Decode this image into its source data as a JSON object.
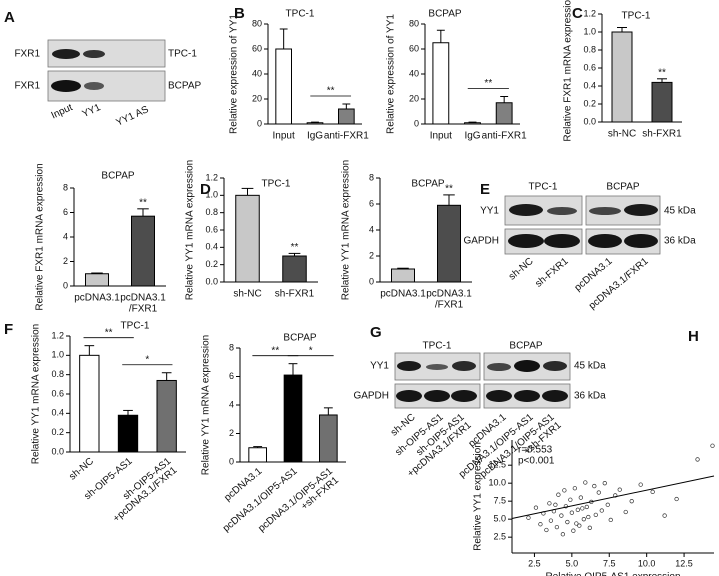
{
  "panels": [
    "A",
    "B",
    "C",
    "D",
    "E",
    "F",
    "G",
    "H"
  ],
  "blot_A": {
    "rows": [
      "FXR1",
      "FXR1"
    ],
    "cells": [
      "TPC-1",
      "BCPAP"
    ],
    "lanes": [
      "Input",
      "YY1",
      "YY1 AS"
    ]
  },
  "blot_E": {
    "cells": [
      "TPC-1",
      "BCPAP"
    ],
    "rows": [
      "YY1",
      "GAPDH"
    ],
    "sizes": [
      "45 kDa",
      "36 kDa"
    ],
    "lanes": [
      "sh-NC",
      "sh-FXR1",
      "pcDNA3.1",
      "pcDNA3.1/FXR1"
    ]
  },
  "blot_G": {
    "cells": [
      "TPC-1",
      "BCPAP"
    ],
    "rows": [
      "YY1",
      "GAPDH"
    ],
    "sizes": [
      "45 kDa",
      "36 kDa"
    ],
    "lanes": [
      "sh-NC",
      "sh-OIP5-AS1",
      [
        "sh-OIP5-AS1",
        "+pcDNA3.1/FXR1"
      ],
      "pcDNA3.1",
      "pcDNA3.1/OIP5-AS1",
      [
        "pcDNA3.1/OIP5-AS1",
        "+sh-FXR1"
      ]
    ]
  },
  "chart_data": [
    {
      "type": "bar",
      "title": "TPC-1",
      "ylabel": "Relative expression of YY1",
      "categories": [
        "Input",
        "IgG",
        "anti-FXR1"
      ],
      "values": [
        60,
        1,
        12
      ],
      "errors": [
        16,
        0.5,
        4
      ],
      "colors": [
        "#ffffff",
        "#ffffff",
        "#808080"
      ],
      "ylim": [
        0,
        80
      ],
      "yticks": [
        0,
        20,
        40,
        60,
        80
      ],
      "brackets": [
        {
          "between": [
            1,
            2
          ],
          "label": "**"
        }
      ]
    },
    {
      "type": "bar",
      "title": "BCPAP",
      "ylabel": "Relative expression of YY1",
      "categories": [
        "Input",
        "IgG",
        "anti-FXR1"
      ],
      "values": [
        65,
        1,
        17
      ],
      "errors": [
        10,
        0.5,
        5
      ],
      "colors": [
        "#ffffff",
        "#ffffff",
        "#808080"
      ],
      "ylim": [
        0,
        80
      ],
      "yticks": [
        0,
        20,
        40,
        60,
        80
      ],
      "brackets": [
        {
          "between": [
            1,
            2
          ],
          "label": "**"
        }
      ]
    },
    {
      "type": "bar",
      "title": "TPC-1",
      "ylabel": "Relative FXR1 mRNA expression",
      "categories": [
        "sh-NC",
        "sh-FXR1"
      ],
      "values": [
        1.0,
        0.44
      ],
      "errors": [
        0.05,
        0.04
      ],
      "colors": [
        "#c8c8c8",
        "#4d4d4d"
      ],
      "ylim": [
        0,
        1.2
      ],
      "yticks": [
        {
          "value": 0,
          "label": "0.0"
        },
        0.2,
        0.4,
        0.6,
        0.8,
        {
          "value": 1,
          "label": "1.0"
        },
        1.2
      ],
      "annotations": [
        {
          "at": 1,
          "label": "**"
        }
      ]
    },
    {
      "type": "bar",
      "title": "BCPAP",
      "ylabel": "Relative FXR1 mRNA expression",
      "categories": [
        "pcDNA3.1",
        [
          "pcDNA3.1",
          "/FXR1"
        ]
      ],
      "values": [
        1.0,
        5.7
      ],
      "errors": [
        0.06,
        0.6
      ],
      "colors": [
        "#c8c8c8",
        "#4d4d4d"
      ],
      "ylim": [
        0,
        8
      ],
      "yticks": [
        0,
        2,
        4,
        6,
        8
      ],
      "annotations": [
        {
          "at": 1,
          "label": "**"
        }
      ]
    },
    {
      "type": "bar",
      "title": "TPC-1",
      "ylabel": "Relative YY1 mRNA expression",
      "categories": [
        "sh-NC",
        "sh-FXR1"
      ],
      "values": [
        1.0,
        0.3
      ],
      "errors": [
        0.08,
        0.03
      ],
      "colors": [
        "#c8c8c8",
        "#4d4d4d"
      ],
      "ylim": [
        0,
        1.2
      ],
      "yticks": [
        {
          "value": 0,
          "label": "0.0"
        },
        0.2,
        0.4,
        0.6,
        0.8,
        {
          "value": 1,
          "label": "1.0"
        },
        1.2
      ],
      "annotations": [
        {
          "at": 1,
          "label": "**"
        }
      ]
    },
    {
      "type": "bar",
      "title": "BCPAP",
      "ylabel": "Relative YY1 mRNA expression",
      "categories": [
        "pcDNA3.1",
        [
          "pcDNA3.1",
          "/FXR1"
        ]
      ],
      "values": [
        1.0,
        5.9
      ],
      "errors": [
        0.06,
        0.8
      ],
      "colors": [
        "#c8c8c8",
        "#4d4d4d"
      ],
      "ylim": [
        0,
        8
      ],
      "yticks": [
        0,
        2,
        4,
        6,
        8
      ],
      "annotations": [
        {
          "at": 1,
          "label": "**"
        }
      ]
    },
    {
      "type": "bar",
      "title": "TPC-1",
      "ylabel": "Relative YY1 mRNA expression",
      "rotate_labels": true,
      "categories": [
        "sh-NC",
        "sh-OIP5-AS1",
        [
          "sh-OIP5-AS1",
          "+pcDNA3.1/FXR1"
        ]
      ],
      "values": [
        1.0,
        0.38,
        0.74
      ],
      "errors": [
        0.1,
        0.05,
        0.08
      ],
      "colors": [
        "#ffffff",
        "#000000",
        "#707070"
      ],
      "ylim": [
        0,
        1.2
      ],
      "yticks": [
        {
          "value": 0,
          "label": "0.0"
        },
        0.2,
        0.4,
        0.6,
        0.8,
        {
          "value": 1,
          "label": "1.0"
        },
        1.2
      ],
      "brackets": [
        {
          "between": [
            0,
            1
          ],
          "label": "**"
        },
        {
          "between": [
            1,
            2
          ],
          "label": "*"
        }
      ]
    },
    {
      "type": "bar",
      "title": "BCPAP",
      "ylabel": "Relative YY1 mRNA expression",
      "rotate_labels": true,
      "categories": [
        "pcDNA3.1",
        "pcDNA3.1/OIP5-AS1",
        [
          "pcDNA3.1/OIP5-AS1",
          "+sh-FXR1"
        ]
      ],
      "values": [
        1.0,
        6.1,
        3.3
      ],
      "errors": [
        0.08,
        0.8,
        0.5
      ],
      "colors": [
        "#ffffff",
        "#000000",
        "#707070"
      ],
      "ylim": [
        0,
        8
      ],
      "yticks": [
        0,
        2,
        4,
        6,
        8
      ],
      "brackets": [
        {
          "between": [
            0,
            1
          ],
          "label": "**"
        },
        {
          "between": [
            1,
            2
          ],
          "label": "*"
        }
      ]
    },
    {
      "type": "scatter",
      "xlabel": "Relative OIP5-AS1 expression",
      "ylabel": "Relative YY1 expression",
      "annotations": [
        "r=0.553",
        "p<0.001"
      ],
      "x": [
        2.1,
        2.6,
        2.9,
        3.1,
        3.3,
        3.5,
        3.6,
        3.8,
        4.0,
        4.1,
        4.3,
        4.4,
        4.6,
        4.7,
        4.9,
        5.0,
        5.1,
        5.2,
        5.4,
        5.5,
        5.6,
        5.8,
        5.9,
        6.0,
        6.2,
        6.3,
        6.5,
        6.6,
        6.8,
        7.0,
        7.2,
        7.4,
        7.6,
        7.9,
        8.2,
        8.6,
        9.0,
        9.6,
        10.4,
        11.2,
        12.0,
        13.4,
        14.4,
        3.9,
        5.3,
        6.1,
        4.5,
        5.7
      ],
      "y": [
        5.2,
        6.6,
        4.3,
        5.8,
        3.5,
        7.2,
        4.8,
        6.1,
        3.9,
        8.4,
        5.5,
        2.9,
        6.8,
        4.6,
        7.7,
        5.9,
        3.4,
        9.3,
        6.3,
        4.1,
        8.0,
        5.0,
        10.1,
        6.7,
        3.8,
        7.4,
        9.6,
        5.6,
        8.7,
        6.2,
        10.0,
        7.0,
        4.9,
        8.3,
        9.1,
        6.0,
        7.5,
        9.8,
        8.8,
        5.5,
        7.8,
        13.3,
        15.2,
        7.0,
        4.4,
        5.3,
        9.0,
        6.5
      ],
      "fit_line": {
        "x": [
          1,
          14.5
        ],
        "y": [
          5.1,
          11.0
        ]
      },
      "xlim": [
        1,
        14.5
      ],
      "ylim": [
        0.3,
        16
      ],
      "xticks": [
        2.5,
        {
          "value": 5,
          "label": "5.0"
        },
        7.5,
        {
          "value": 10,
          "label": "10.0"
        },
        12.5
      ],
      "yticks": [
        2.5,
        {
          "value": 5,
          "label": "5.0"
        },
        7.5,
        {
          "value": 10,
          "label": "10.0"
        },
        12.5
      ]
    }
  ]
}
